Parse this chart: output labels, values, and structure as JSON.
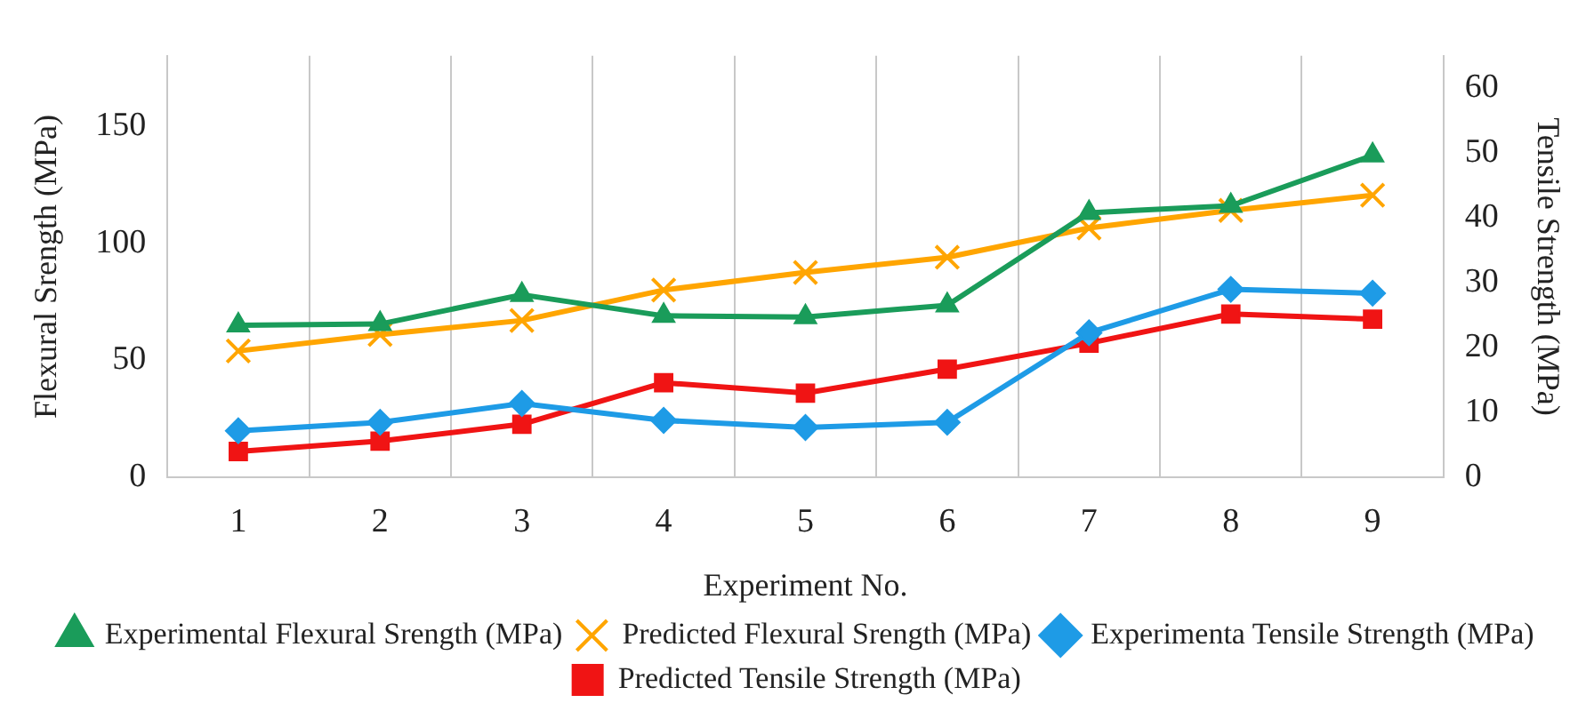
{
  "chart_data": {
    "type": "line",
    "xlabel": "Experiment No.",
    "ylabel": "Flexural Srength (MPa)",
    "y2label": "Tensile Strength (MPa)",
    "categories": [
      "1",
      "2",
      "3",
      "4",
      "5",
      "6",
      "7",
      "8",
      "9"
    ],
    "ylim": [
      0,
      180
    ],
    "yticks": [
      0,
      50,
      100,
      150
    ],
    "y2lim": [
      0,
      65
    ],
    "y2ticks": [
      0,
      10,
      20,
      30,
      40,
      50,
      60
    ],
    "grid": "x",
    "legend": "bottom",
    "series": [
      {
        "name": "Experimental Flexural Srength (MPa)",
        "color": "#1a9c5a",
        "marker": "triangle",
        "values": [
          65,
          65.5,
          78,
          69,
          68.5,
          73.5,
          113,
          116,
          137.5
        ]
      },
      {
        "name": "Predicted Flexural Srength (MPa)",
        "color": "#ffa500",
        "marker": "cross",
        "values": [
          54,
          61,
          67,
          80,
          87.5,
          94,
          106.5,
          114,
          120.5
        ]
      },
      {
        "name": "Experimenta Tensile Strength (MPa)",
        "color": "#1e9be6",
        "marker": "diamond",
        "axis": "y2",
        "values": [
          7.2,
          8.5,
          11.4,
          8.8,
          7.7,
          8.5,
          22.3,
          29,
          28.4
        ]
      },
      {
        "name": "Predicted Tensile Strength (MPa)",
        "color": "#f01414",
        "marker": "square",
        "axis": "y2",
        "values": [
          4,
          5.6,
          8.2,
          14.6,
          13,
          16.7,
          20.7,
          25.2,
          24.4
        ]
      }
    ]
  }
}
